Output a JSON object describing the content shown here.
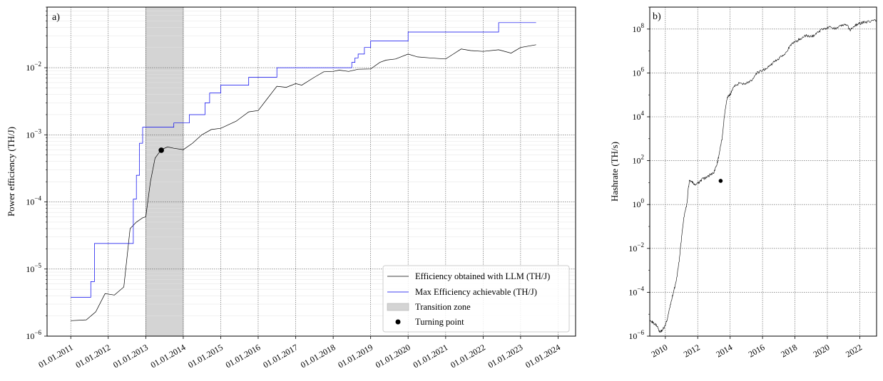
{
  "chart_data": [
    {
      "id": "a",
      "panel_label": "a)",
      "type": "line",
      "ylabel": "Power efficiency (TH/J)",
      "yscale": "log",
      "ylim": [
        1e-06,
        0.08
      ],
      "xlim": [
        "2010-05-15",
        "2024-06-20"
      ],
      "xticks": [
        "2011-01-01",
        "2012-01-01",
        "2013-01-01",
        "2014-01-01",
        "2015-01-01",
        "2016-01-01",
        "2017-01-01",
        "2018-01-01",
        "2019-01-01",
        "2020-01-01",
        "2021-01-01",
        "2022-01-01",
        "2023-01-01",
        "2024-01-01"
      ],
      "xtick_labels": [
        "01.01.2011",
        "01.01.2012",
        "01.01.2013",
        "01.01.2014",
        "01.01.2015",
        "01.01.2016",
        "01.01.2017",
        "01.01.2018",
        "01.01.2019",
        "01.01.2020",
        "01.01.2021",
        "01.01.2022",
        "01.01.2023",
        "01.01.2024"
      ],
      "yticks": [
        1e-06,
        1e-05,
        0.0001,
        0.001,
        0.01
      ],
      "ytick_labels": [
        {
          "base": "10",
          "exp": "−6"
        },
        {
          "base": "10",
          "exp": "−5"
        },
        {
          "base": "10",
          "exp": "−4"
        },
        {
          "base": "10",
          "exp": "−3"
        },
        {
          "base": "10",
          "exp": "−2"
        }
      ],
      "grid": true,
      "legend_position": "bottom-right",
      "shaded_region": {
        "name": "Transition zone",
        "x": [
          "2013-01-01",
          "2014-01-01"
        ],
        "color": "#d4d4d4"
      },
      "series": [
        {
          "name": "Efficiency obtained with LLM (TH/J)",
          "color": "#000000",
          "style": "line",
          "x": [
            "2011-01-01",
            "2011-06-01",
            "2011-09-01",
            "2011-12-01",
            "2012-03-01",
            "2012-06-01",
            "2012-08-01",
            "2012-10-01",
            "2012-12-01",
            "2013-01-01",
            "2013-02-15",
            "2013-04-01",
            "2013-06-01",
            "2013-08-01",
            "2013-10-01",
            "2014-01-01",
            "2014-04-01",
            "2014-07-01",
            "2014-10-01",
            "2015-01-01",
            "2015-06-01",
            "2015-10-01",
            "2016-01-01",
            "2016-04-01",
            "2016-07-01",
            "2016-10-01",
            "2017-01-01",
            "2017-03-01",
            "2017-07-01",
            "2017-10-01",
            "2018-01-01",
            "2018-03-01",
            "2018-06-01",
            "2018-09-01",
            "2019-01-01",
            "2019-04-01",
            "2019-06-01",
            "2019-09-01",
            "2020-01-01",
            "2020-04-01",
            "2020-08-01",
            "2021-01-01",
            "2021-06-01",
            "2021-09-01",
            "2022-01-01",
            "2022-06-01",
            "2022-10-01",
            "2023-01-01",
            "2023-06-01"
          ],
          "values": [
            1.7e-06,
            1.75e-06,
            2.3e-06,
            4.3e-06,
            4.1e-06,
            5.4e-06,
            4e-05,
            5e-05,
            5.8e-05,
            6e-05,
            0.0002,
            0.00045,
            0.0006,
            0.00066,
            0.00063,
            0.0006,
            0.00075,
            0.001,
            0.0012,
            0.00125,
            0.0016,
            0.0022,
            0.0023,
            0.0035,
            0.0053,
            0.0051,
            0.0058,
            0.0055,
            0.0072,
            0.0087,
            0.0088,
            0.0092,
            0.0088,
            0.0095,
            0.0096,
            0.012,
            0.013,
            0.0135,
            0.016,
            0.0145,
            0.014,
            0.0135,
            0.019,
            0.018,
            0.0175,
            0.0185,
            0.0165,
            0.02,
            0.022
          ]
        },
        {
          "name": "Max Efficiency achievable (TH/J)",
          "color": "#0000ee",
          "style": "step",
          "x": [
            "2011-01-01",
            "2011-07-15",
            "2011-08-20",
            "2012-08-01",
            "2012-09-01",
            "2012-10-01",
            "2012-11-01",
            "2012-12-01",
            "2013-01-01",
            "2013-02-15",
            "2013-03-15",
            "2013-06-01",
            "2013-10-01",
            "2014-01-01",
            "2014-03-01",
            "2014-06-01",
            "2014-08-01",
            "2014-09-15",
            "2015-01-01",
            "2015-07-01",
            "2015-10-01",
            "2016-07-01",
            "2017-01-01",
            "2018-01-01",
            "2018-07-01",
            "2018-08-01",
            "2018-09-01",
            "2018-10-01",
            "2018-11-01",
            "2019-01-01",
            "2019-03-01",
            "2019-05-01",
            "2020-01-01",
            "2021-01-01",
            "2021-06-01",
            "2022-06-01",
            "2023-06-01"
          ],
          "values": [
            3.8e-06,
            6.5e-06,
            2.4e-05,
            2.4e-05,
            0.00011,
            0.00025,
            0.00075,
            0.0013,
            0.0013,
            0.0013,
            0.0013,
            0.0013,
            0.0015,
            0.0015,
            0.002,
            0.002,
            0.003,
            0.0042,
            0.0055,
            0.0055,
            0.0072,
            0.01,
            0.01,
            0.01,
            0.012,
            0.014,
            0.016,
            0.016,
            0.02,
            0.025,
            0.025,
            0.025,
            0.034,
            0.034,
            0.034,
            0.047,
            0.047
          ]
        },
        {
          "name": "Turning point",
          "color": "#000000",
          "style": "marker",
          "x": [
            "2013-06-01"
          ],
          "values": [
            0.00059
          ]
        }
      ]
    },
    {
      "id": "b",
      "panel_label": "b)",
      "type": "line",
      "ylabel": "Hashrate (TH/s)",
      "yscale": "log",
      "ylim": [
        1e-06,
        1000000000.0
      ],
      "xlim": [
        "2009-01-15",
        "2023-01-15"
      ],
      "xticks": [
        "2010-01-01",
        "2012-01-01",
        "2014-01-01",
        "2016-01-01",
        "2018-01-01",
        "2020-01-01",
        "2022-01-01"
      ],
      "xtick_labels": [
        "2010",
        "2012",
        "2014",
        "2016",
        "2018",
        "2020",
        "2022"
      ],
      "yticks": [
        1e-06,
        0.0001,
        0.01,
        1,
        100.0,
        10000.0,
        1000000.0,
        100000000.0
      ],
      "ytick_labels": [
        {
          "base": "10",
          "exp": "−6"
        },
        {
          "base": "10",
          "exp": "−4"
        },
        {
          "base": "10",
          "exp": "−2"
        },
        {
          "base": "10",
          "exp": "0"
        },
        {
          "base": "10",
          "exp": "2"
        },
        {
          "base": "10",
          "exp": "4"
        },
        {
          "base": "10",
          "exp": "6"
        },
        {
          "base": "10",
          "exp": "8"
        }
      ],
      "grid": true,
      "series": [
        {
          "name": "",
          "color": "#000000",
          "style": "line",
          "x": [
            "2009-01-15",
            "2009-04-01",
            "2009-07-01",
            "2009-09-01",
            "2009-11-01",
            "2010-01-01",
            "2010-03-01",
            "2010-05-01",
            "2010-07-01",
            "2010-09-01",
            "2010-11-01",
            "2011-01-01",
            "2011-03-01",
            "2011-05-01",
            "2011-06-01",
            "2011-07-01",
            "2011-09-01",
            "2011-11-01",
            "2012-01-01",
            "2012-03-01",
            "2012-05-01",
            "2012-07-01",
            "2012-09-01",
            "2012-11-01",
            "2013-01-01",
            "2013-03-01",
            "2013-05-01",
            "2013-07-01",
            "2013-09-01",
            "2013-11-01",
            "2014-01-01",
            "2014-03-01",
            "2014-06-01",
            "2014-09-01",
            "2014-12-01",
            "2015-03-01",
            "2015-06-01",
            "2015-09-01",
            "2015-12-01",
            "2016-03-01",
            "2016-06-01",
            "2016-09-01",
            "2016-12-01",
            "2017-03-01",
            "2017-06-01",
            "2017-09-01",
            "2017-12-01",
            "2018-03-01",
            "2018-06-01",
            "2018-09-01",
            "2018-12-01",
            "2019-03-01",
            "2019-06-01",
            "2019-09-01",
            "2019-12-01",
            "2020-03-01",
            "2020-06-01",
            "2020-09-01",
            "2020-12-01",
            "2021-03-01",
            "2021-06-01",
            "2021-09-01",
            "2021-12-01",
            "2022-03-01",
            "2022-06-01",
            "2022-09-01",
            "2023-01-15"
          ],
          "values": [
            6e-06,
            4e-06,
            3e-06,
            1.5e-06,
            2e-06,
            3e-06,
            8e-06,
            3e-05,
            0.0001,
            0.0003,
            0.002,
            0.03,
            0.3,
            1,
            5,
            13,
            10,
            8,
            9,
            12,
            15,
            16,
            20,
            25,
            30,
            60,
            200,
            1000,
            15000,
            80000,
            100000,
            200000,
            300000,
            350000,
            320000,
            400000,
            500000,
            1000000,
            1200000,
            1500000,
            2000000,
            3000000,
            4000000,
            6000000,
            8000000,
            15000000,
            25000000,
            30000000,
            40000000,
            50000000,
            45000000,
            50000000,
            70000000,
            100000000,
            110000000,
            120000000,
            100000000,
            130000000,
            150000000,
            160000000,
            90000000,
            140000000,
            170000000,
            200000000,
            210000000,
            230000000,
            250000000
          ]
        },
        {
          "name": "",
          "color": "#000000",
          "style": "marker",
          "x": [
            "2013-06-01"
          ],
          "values": [
            12
          ]
        }
      ]
    }
  ]
}
